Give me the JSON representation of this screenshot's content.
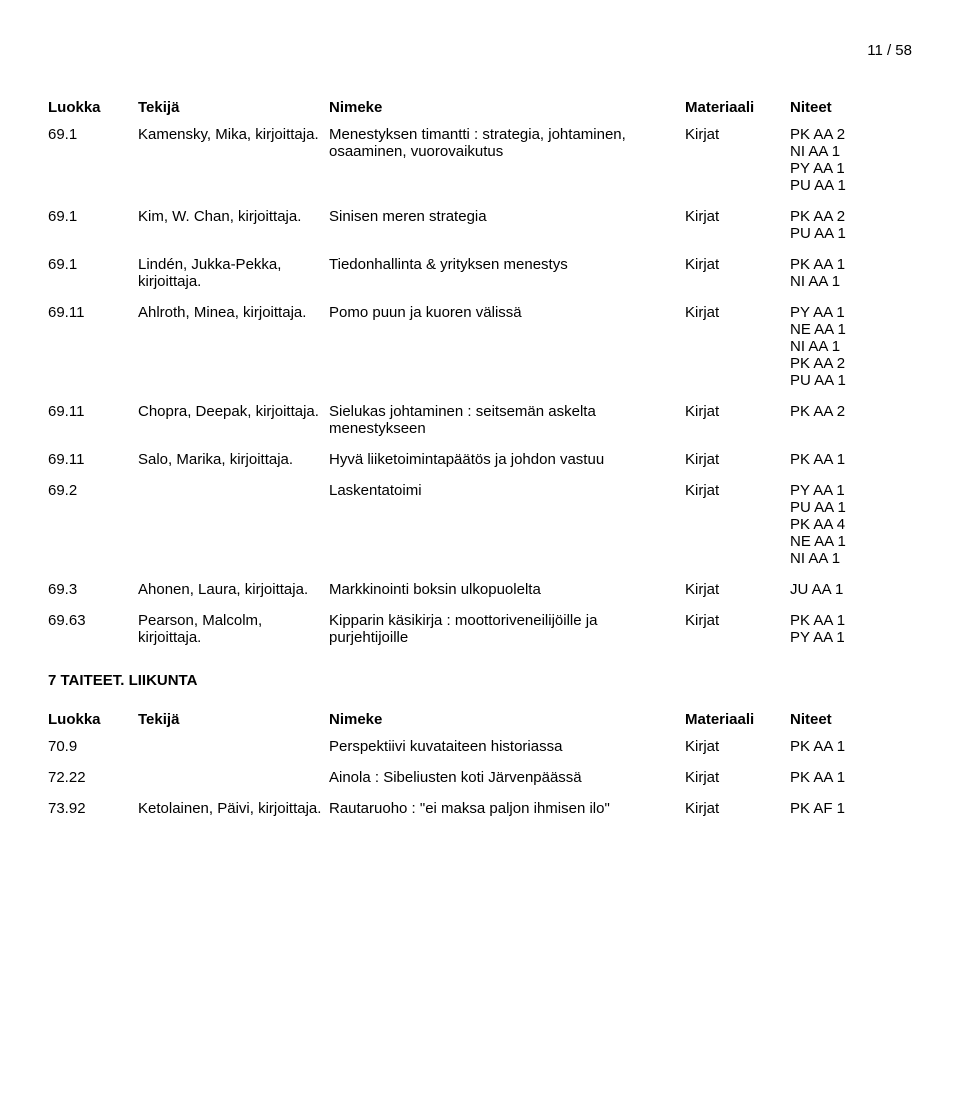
{
  "pageNumber": "11 / 58",
  "headers": {
    "luokka": "Luokka",
    "tekija": "Tekijä",
    "nimeke": "Nimeke",
    "materiaali": "Materiaali",
    "niteet": "Niteet"
  },
  "rows1": [
    {
      "luokka": "69.1",
      "tekija": "Kamensky, Mika, kirjoittaja.",
      "nimeke": "Menestyksen timantti : strategia, johtaminen, osaaminen, vuorovaikutus",
      "materiaali": "Kirjat",
      "niteet": [
        "PK AA 2",
        "NI AA 1",
        "PY AA 1",
        "PU AA 1"
      ]
    },
    {
      "luokka": "69.1",
      "tekija": "Kim, W. Chan, kirjoittaja.",
      "nimeke": "Sinisen meren strategia",
      "materiaali": "Kirjat",
      "niteet": [
        "PK AA 2",
        "PU AA 1"
      ]
    },
    {
      "luokka": "69.1",
      "tekija": "Lindén, Jukka-Pekka, kirjoittaja.",
      "nimeke": "Tiedonhallinta & yrityksen menestys",
      "materiaali": "Kirjat",
      "niteet": [
        "PK AA 1",
        "NI AA 1"
      ]
    },
    {
      "luokka": "69.11",
      "tekija": "Ahlroth, Minea, kirjoittaja.",
      "nimeke": "Pomo puun ja kuoren välissä",
      "materiaali": "Kirjat",
      "niteet": [
        "PY AA 1",
        "NE AA 1",
        "NI AA 1",
        "PK AA 2",
        "PU AA 1"
      ]
    },
    {
      "luokka": "69.11",
      "tekija": "Chopra, Deepak, kirjoittaja.",
      "nimeke": "Sielukas johtaminen : seitsemän askelta menestykseen",
      "materiaali": "Kirjat",
      "niteet": [
        "PK AA 2"
      ]
    },
    {
      "luokka": "69.11",
      "tekija": "Salo, Marika, kirjoittaja.",
      "nimeke": "Hyvä liiketoimintapäätös ja johdon vastuu",
      "materiaali": "Kirjat",
      "niteet": [
        "PK AA 1"
      ]
    },
    {
      "luokka": "69.2",
      "tekija": "",
      "nimeke": "Laskentatoimi",
      "materiaali": "Kirjat",
      "niteet": [
        "PY AA 1",
        "PU AA 1",
        "PK AA 4",
        "NE AA 1",
        "NI AA 1"
      ]
    },
    {
      "luokka": "69.3",
      "tekija": "Ahonen, Laura, kirjoittaja.",
      "nimeke": "Markkinointi boksin ulkopuolelta",
      "materiaali": "Kirjat",
      "niteet": [
        "JU AA 1"
      ]
    },
    {
      "luokka": "69.63",
      "tekija": "Pearson, Malcolm, kirjoittaja.",
      "nimeke": "Kipparin käsikirja : moottoriveneilijöille ja purjehtijoille",
      "materiaali": "Kirjat",
      "niteet": [
        "PK AA 1",
        "PY AA 1"
      ]
    }
  ],
  "sectionTitle": "7 TAITEET. LIIKUNTA",
  "rows2": [
    {
      "luokka": "70.9",
      "tekija": "",
      "nimeke": "Perspektiivi kuvataiteen historiassa",
      "materiaali": "Kirjat",
      "niteet": [
        "PK AA 1"
      ]
    },
    {
      "luokka": "72.22",
      "tekija": "",
      "nimeke": "Ainola : Sibeliusten koti Järvenpäässä",
      "materiaali": "Kirjat",
      "niteet": [
        "PK AA 1"
      ]
    },
    {
      "luokka": "73.92",
      "tekija": "Ketolainen, Päivi, kirjoittaja.",
      "nimeke": "Rautaruoho : \"ei maksa paljon ihmisen ilo\"",
      "materiaali": "Kirjat",
      "niteet": [
        "PK AF 1"
      ]
    }
  ]
}
